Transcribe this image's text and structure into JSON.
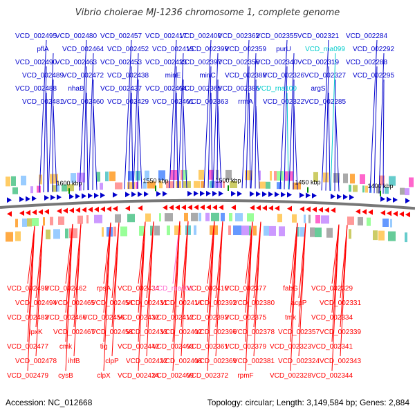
{
  "title": "Vibrio cholerae MJ-1236 chromosome 1, complete genome",
  "footer": {
    "accession": "Accession: NC_012668",
    "summary": "Topology: circular; Length: 3,149,584 bp; Genes: 2,884"
  },
  "colors": {
    "forward": "#0000cc",
    "reverse": "#ff0000",
    "rna_forward": "#00cccc",
    "rna_reverse": "#ff66cc",
    "backbone": "#777777",
    "tick": "#008800"
  },
  "ticks": [
    {
      "label": "1600 kbp"
    },
    {
      "label": "1550 kbp"
    },
    {
      "label": "1500 kbp"
    },
    {
      "label": "1450 kbp"
    },
    {
      "label": "1400 kbp"
    }
  ],
  "top_labels": [
    {
      "text": "VCD_002495",
      "rna": false
    },
    {
      "text": "pflA",
      "rna": false
    },
    {
      "text": "VCD_002490",
      "rna": false
    },
    {
      "text": "VCD_002489",
      "rna": false
    },
    {
      "text": "VCD_002488",
      "rna": false
    },
    {
      "text": "VCD_002481",
      "rna": false
    },
    {
      "text": "VCD_002480",
      "rna": false
    },
    {
      "text": "VCD_002464",
      "rna": false
    },
    {
      "text": "VCD_002463",
      "rna": false
    },
    {
      "text": "VCD_002472",
      "rna": false
    },
    {
      "text": "nhaB",
      "rna": false
    },
    {
      "text": "VCD_002460",
      "rna": false
    },
    {
      "text": "VCD_002457",
      "rna": false
    },
    {
      "text": "VCD_002452",
      "rna": false
    },
    {
      "text": "VCD_002453",
      "rna": false
    },
    {
      "text": "VCD_002438",
      "rna": false
    },
    {
      "text": "VCD_002437",
      "rna": false
    },
    {
      "text": "VCD_002429",
      "rna": false
    },
    {
      "text": "VCD_002417",
      "rna": false
    },
    {
      "text": "VCD_002415",
      "rna": false
    },
    {
      "text": "VCD_002423",
      "rna": false
    },
    {
      "text": "minE",
      "rna": false
    },
    {
      "text": "VCD_002404",
      "rna": false
    },
    {
      "text": "VCD_002401",
      "rna": false
    },
    {
      "text": "VCD_002400",
      "rna": false
    },
    {
      "text": "VCD_002399",
      "rna": false
    },
    {
      "text": "VCD_002397",
      "rna": false
    },
    {
      "text": "minC",
      "rna": false
    },
    {
      "text": "VCD_002365",
      "rna": false
    },
    {
      "text": "VCD_002363",
      "rna": false
    },
    {
      "text": "VCD_002362",
      "rna": false
    },
    {
      "text": "VCD_002359",
      "rna": false
    },
    {
      "text": "VCD_002356",
      "rna": false
    },
    {
      "text": "VCD_002388",
      "rna": false
    },
    {
      "text": "VCD_002386",
      "rna": false
    },
    {
      "text": "rrmA",
      "rna": false
    },
    {
      "text": "VCD_002355",
      "rna": false
    },
    {
      "text": "purU",
      "rna": false
    },
    {
      "text": "VCD_002340",
      "rna": false
    },
    {
      "text": "VCD_002326",
      "rna": false
    },
    {
      "text": "VCD_rna100",
      "rna": true
    },
    {
      "text": "VCD_002322",
      "rna": false
    },
    {
      "text": "VCD_002321",
      "rna": false
    },
    {
      "text": "VCD_rna099",
      "rna": true
    },
    {
      "text": "VCD_002319",
      "rna": false
    },
    {
      "text": "VCD_002327",
      "rna": false
    },
    {
      "text": "argS",
      "rna": false
    },
    {
      "text": "VCD_002285",
      "rna": false
    },
    {
      "text": "VCD_002284",
      "rna": false
    },
    {
      "text": "VCD_002292",
      "rna": false
    },
    {
      "text": "VCD_002288",
      "rna": false
    },
    {
      "text": "VCD_002295",
      "rna": false
    }
  ],
  "bottom_labels": [
    {
      "text": "VCD_002498",
      "rna": false
    },
    {
      "text": "VCD_002494",
      "rna": false
    },
    {
      "text": "VCD_002483",
      "rna": false
    },
    {
      "text": "lpxK",
      "rna": false
    },
    {
      "text": "VCD_002477",
      "rna": false
    },
    {
      "text": "VCD_002478",
      "rna": false
    },
    {
      "text": "VCD_002479",
      "rna": false
    },
    {
      "text": "VCD_002462",
      "rna": false
    },
    {
      "text": "VCD_002465",
      "rna": false
    },
    {
      "text": "VCD_002466",
      "rna": false
    },
    {
      "text": "VCD_002467",
      "rna": false
    },
    {
      "text": "cmk",
      "rna": false
    },
    {
      "text": "ihfB",
      "rna": false
    },
    {
      "text": "cysB",
      "rna": false
    },
    {
      "text": "rpsA",
      "rna": false
    },
    {
      "text": "VCD_002454",
      "rna": false
    },
    {
      "text": "VCD_002456",
      "rna": false
    },
    {
      "text": "VCD_002458",
      "rna": false
    },
    {
      "text": "tig",
      "rna": false
    },
    {
      "text": "clpP",
      "rna": false
    },
    {
      "text": "clpX",
      "rna": false
    },
    {
      "text": "VCD_002434",
      "rna": false
    },
    {
      "text": "VCD_002431",
      "rna": false
    },
    {
      "text": "VCD_002432",
      "rna": false
    },
    {
      "text": "VCD_002433",
      "rna": false
    },
    {
      "text": "VCD_002442",
      "rna": false
    },
    {
      "text": "VCD_002422",
      "rna": false
    },
    {
      "text": "VCD_002424",
      "rna": false
    },
    {
      "text": "VCD_rna101",
      "rna": true
    },
    {
      "text": "VCD_002414",
      "rna": false
    },
    {
      "text": "VCD_002412",
      "rna": false
    },
    {
      "text": "VCD_002402",
      "rna": false
    },
    {
      "text": "VCD_002403",
      "rna": false
    },
    {
      "text": "VCD_002408",
      "rna": false
    },
    {
      "text": "VCD_002409",
      "rna": false
    },
    {
      "text": "VCD_002410",
      "rna": false
    },
    {
      "text": "VCD_002392",
      "rna": false
    },
    {
      "text": "VCD_002393",
      "rna": false
    },
    {
      "text": "VCD_002396",
      "rna": false
    },
    {
      "text": "VCD_002361",
      "rna": false
    },
    {
      "text": "VCD_002369",
      "rna": false
    },
    {
      "text": "VCD_002372",
      "rna": false
    },
    {
      "text": "VCD_002377",
      "rna": false
    },
    {
      "text": "VCD_002380",
      "rna": false
    },
    {
      "text": "VCD_002375",
      "rna": false
    },
    {
      "text": "VCD_002378",
      "rna": false
    },
    {
      "text": "VCD_002379",
      "rna": false
    },
    {
      "text": "VCD_002381",
      "rna": false
    },
    {
      "text": "rpmF",
      "rna": false
    },
    {
      "text": "fabG",
      "rna": false
    },
    {
      "text": "acpP",
      "rna": false
    },
    {
      "text": "tmk",
      "rna": false
    },
    {
      "text": "VCD_002357",
      "rna": false
    },
    {
      "text": "VCD_002323",
      "rna": false
    },
    {
      "text": "VCD_002324",
      "rna": false
    },
    {
      "text": "VCD_002328",
      "rna": false
    },
    {
      "text": "VCD_002329",
      "rna": false
    },
    {
      "text": "VCD_002331",
      "rna": false
    },
    {
      "text": "VCD_002334",
      "rna": false
    },
    {
      "text": "VCD_002339",
      "rna": false
    },
    {
      "text": "VCD_002341",
      "rna": false
    },
    {
      "text": "VCD_002343",
      "rna": false
    },
    {
      "text": "VCD_002344",
      "rna": false
    }
  ]
}
